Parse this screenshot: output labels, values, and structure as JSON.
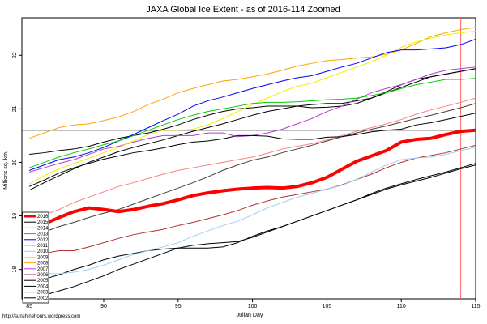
{
  "chart_data": {
    "type": "line",
    "title": "JAXA Global Ice Extent - as of 2016-114 Zoomed",
    "xlabel": "Julian Day",
    "ylabel": "Millions sq. km.",
    "credit": "http://sunshinehours.wordpress.com",
    "xlim": [
      84.5,
      115
    ],
    "ylim": [
      17.45,
      22.7
    ],
    "xticks": [
      85,
      90,
      95,
      100,
      105,
      110,
      115
    ],
    "yticks": [
      18,
      19,
      20,
      21,
      22
    ],
    "grid": false,
    "legend_position": "bottom-left",
    "reference_hline": 20.6,
    "reference_vline": 114,
    "x": [
      85,
      86,
      87,
      88,
      89,
      90,
      91,
      92,
      93,
      94,
      95,
      96,
      97,
      98,
      99,
      100,
      101,
      102,
      103,
      104,
      105,
      106,
      107,
      108,
      109,
      110,
      111,
      112,
      113,
      114,
      115
    ],
    "series": [
      {
        "name": "2016",
        "color": "#ff0000",
        "width": 4,
        "values": [
          18.8,
          18.85,
          18.97,
          19.08,
          19.15,
          19.12,
          19.08,
          19.12,
          19.18,
          19.23,
          19.3,
          19.38,
          19.43,
          19.47,
          19.5,
          19.52,
          19.53,
          19.52,
          19.55,
          19.62,
          19.72,
          19.87,
          20.02,
          20.12,
          20.22,
          20.38,
          20.43,
          20.45,
          20.52,
          20.58,
          20.6
        ]
      },
      {
        "name": "2015",
        "color": "#000000",
        "width": 1,
        "values": [
          19.55,
          19.67,
          19.8,
          19.9,
          19.98,
          20.06,
          20.12,
          20.18,
          20.22,
          20.27,
          20.33,
          20.38,
          20.4,
          20.44,
          20.5,
          20.5,
          20.49,
          20.44,
          20.43,
          20.43,
          20.47,
          20.48,
          20.52,
          20.57,
          20.6,
          20.62,
          20.7,
          20.74,
          20.8,
          20.86,
          20.92
        ]
      },
      {
        "name": "2014",
        "color": "#404040",
        "width": 1,
        "values": [
          18.55,
          18.7,
          18.8,
          18.88,
          18.97,
          19.05,
          19.12,
          19.22,
          19.32,
          19.42,
          19.52,
          19.62,
          19.73,
          19.85,
          19.95,
          20.04,
          20.1,
          20.18,
          20.25,
          20.32,
          20.4,
          20.48,
          20.55,
          20.62,
          20.68,
          20.75,
          20.82,
          20.88,
          20.95,
          21.02,
          21.1
        ]
      },
      {
        "name": "2013",
        "color": "#00cc00",
        "width": 1,
        "values": [
          19.9,
          20.0,
          20.1,
          20.18,
          20.25,
          20.33,
          20.4,
          20.5,
          20.6,
          20.7,
          20.8,
          20.88,
          20.95,
          21.0,
          21.05,
          21.1,
          21.12,
          21.12,
          21.13,
          21.15,
          21.17,
          21.18,
          21.2,
          21.25,
          21.3,
          21.38,
          21.45,
          21.5,
          21.55,
          21.55,
          21.57
        ]
      },
      {
        "name": "2012",
        "color": "#0000ff",
        "width": 1,
        "values": [
          19.85,
          19.95,
          20.05,
          20.1,
          20.18,
          20.28,
          20.4,
          20.52,
          20.65,
          20.78,
          20.9,
          21.05,
          21.15,
          21.22,
          21.3,
          21.38,
          21.45,
          21.52,
          21.58,
          21.62,
          21.7,
          21.78,
          21.85,
          21.95,
          22.05,
          22.1,
          22.1,
          22.12,
          22.14,
          22.2,
          22.3
        ]
      },
      {
        "name": "2011",
        "color": "#ff8080",
        "width": 1,
        "values": [
          18.9,
          19.02,
          19.12,
          19.25,
          19.35,
          19.45,
          19.55,
          19.62,
          19.7,
          19.78,
          19.85,
          19.9,
          19.95,
          20.0,
          20.05,
          20.1,
          20.17,
          20.25,
          20.3,
          20.35,
          20.42,
          20.5,
          20.58,
          20.65,
          20.72,
          20.8,
          20.9,
          20.98,
          21.05,
          21.12,
          21.2
        ]
      },
      {
        "name": "2010",
        "color": "#a0d0f0",
        "width": 1,
        "values": [
          17.9,
          17.92,
          17.92,
          17.95,
          18.0,
          18.08,
          18.18,
          18.28,
          18.35,
          18.42,
          18.5,
          18.62,
          18.72,
          18.82,
          18.9,
          19.02,
          19.15,
          19.25,
          19.35,
          19.42,
          19.5,
          19.57,
          19.68,
          19.82,
          19.95,
          20.05,
          20.08,
          20.1,
          20.15,
          20.22,
          20.28
        ]
      },
      {
        "name": "2009",
        "color": "#eeee00",
        "width": 1,
        "values": [
          19.6,
          19.75,
          19.88,
          19.98,
          20.08,
          20.18,
          20.28,
          20.4,
          20.52,
          20.6,
          20.6,
          20.62,
          20.7,
          20.82,
          20.95,
          21.08,
          21.2,
          21.32,
          21.42,
          21.48,
          21.58,
          21.68,
          21.78,
          21.88,
          22.0,
          22.15,
          22.25,
          22.32,
          22.38,
          22.42,
          22.45
        ]
      },
      {
        "name": "2008",
        "color": "#ffa500",
        "width": 1,
        "values": [
          20.45,
          20.55,
          20.65,
          20.7,
          20.72,
          20.78,
          20.85,
          20.95,
          21.08,
          21.18,
          21.3,
          21.38,
          21.45,
          21.52,
          21.55,
          21.6,
          21.65,
          21.72,
          21.8,
          21.85,
          21.9,
          21.92,
          21.95,
          21.97,
          22.02,
          22.1,
          22.22,
          22.35,
          22.42,
          22.48,
          22.52
        ]
      },
      {
        "name": "2007",
        "color": "#b040d0",
        "width": 1,
        "values": [
          19.82,
          19.9,
          19.98,
          20.05,
          20.15,
          20.25,
          20.3,
          20.38,
          20.45,
          20.5,
          20.5,
          20.5,
          20.55,
          20.55,
          20.48,
          20.5,
          20.55,
          20.62,
          20.72,
          20.82,
          20.95,
          21.05,
          21.18,
          21.3,
          21.38,
          21.45,
          21.55,
          21.65,
          21.72,
          21.75,
          21.78
        ]
      },
      {
        "name": "2006",
        "color": "#b03030",
        "width": 1,
        "values": [
          18.15,
          18.3,
          18.35,
          18.35,
          18.42,
          18.5,
          18.58,
          18.65,
          18.7,
          18.75,
          18.82,
          18.88,
          18.95,
          19.02,
          19.1,
          19.2,
          19.28,
          19.35,
          19.4,
          19.45,
          19.5,
          19.58,
          19.68,
          19.78,
          19.9,
          20.0,
          20.08,
          20.13,
          20.18,
          20.25,
          20.32
        ]
      },
      {
        "name": "2005",
        "color": "#000000",
        "width": 1,
        "values": [
          17.75,
          17.82,
          17.9,
          18.0,
          18.08,
          18.18,
          18.25,
          18.3,
          18.35,
          18.38,
          18.4,
          18.4,
          18.4,
          18.42,
          18.5,
          18.62,
          18.72,
          18.8,
          18.9,
          19.0,
          19.1,
          19.2,
          19.3,
          19.4,
          19.5,
          19.58,
          19.65,
          19.72,
          19.8,
          19.88,
          19.95
        ]
      },
      {
        "name": "2004",
        "color": "#000000",
        "width": 1,
        "values": [
          20.15,
          20.18,
          20.22,
          20.25,
          20.3,
          20.38,
          20.45,
          20.5,
          20.55,
          20.62,
          20.7,
          20.8,
          20.88,
          20.95,
          21.0,
          21.02,
          21.05,
          21.05,
          21.05,
          21.02,
          21.03,
          21.05,
          21.1,
          21.2,
          21.32,
          21.45,
          21.55,
          21.6,
          21.65,
          21.7,
          21.75
        ]
      },
      {
        "name": "2003",
        "color": "#000000",
        "width": 1,
        "values": [
          17.45,
          17.52,
          17.6,
          17.68,
          17.78,
          17.88,
          18.0,
          18.1,
          18.2,
          18.3,
          18.4,
          18.45,
          18.48,
          18.5,
          18.52,
          18.6,
          18.7,
          18.8,
          18.9,
          19.0,
          19.1,
          19.2,
          19.3,
          19.42,
          19.52,
          19.6,
          19.68,
          19.75,
          19.82,
          19.9,
          19.98
        ]
      },
      {
        "name": "2002",
        "color": "#000000",
        "width": 1,
        "values": [
          19.48,
          19.62,
          19.75,
          19.88,
          20.0,
          20.1,
          20.2,
          20.28,
          20.35,
          20.42,
          20.5,
          20.58,
          20.65,
          20.72,
          20.8,
          20.88,
          20.95,
          21.0,
          21.05,
          21.08,
          21.1,
          21.1,
          21.15,
          21.2,
          21.3,
          21.4,
          21.5,
          21.6,
          21.65,
          21.7,
          21.75
        ]
      }
    ]
  }
}
